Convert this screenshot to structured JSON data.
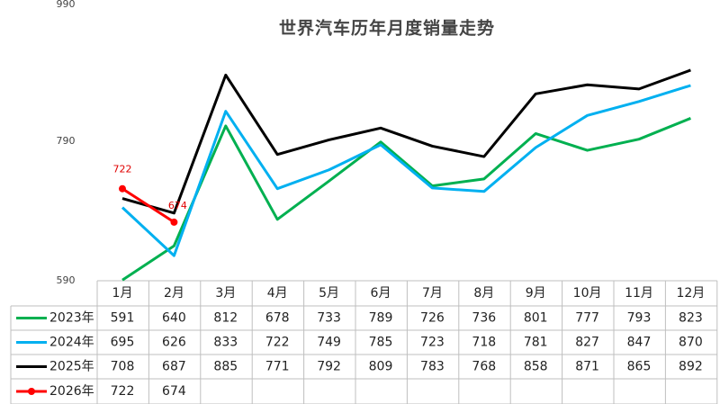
{
  "chart_data": {
    "type": "line",
    "title": "世界汽车历年月度销量走势",
    "categories": [
      "1月",
      "2月",
      "3月",
      "4月",
      "5月",
      "6月",
      "7月",
      "8月",
      "9月",
      "10月",
      "11月",
      "12月"
    ],
    "ylim": [
      590,
      990
    ],
    "yticks": [
      590,
      790,
      990
    ],
    "series": [
      {
        "name": "2023年",
        "color": "#00b050",
        "values": [
          591,
          640,
          812,
          678,
          733,
          789,
          726,
          736,
          801,
          777,
          793,
          823
        ]
      },
      {
        "name": "2024年",
        "color": "#00b0f0",
        "values": [
          695,
          626,
          833,
          722,
          749,
          785,
          723,
          718,
          781,
          827,
          847,
          870
        ]
      },
      {
        "name": "2025年",
        "color": "#000000",
        "values": [
          708,
          687,
          885,
          771,
          792,
          809,
          783,
          768,
          858,
          871,
          865,
          892
        ]
      },
      {
        "name": "2026年",
        "color": "#ff0000",
        "markers": true,
        "data_labels": true,
        "values": [
          722,
          674,
          null,
          null,
          null,
          null,
          null,
          null,
          null,
          null,
          null,
          null
        ]
      }
    ]
  }
}
